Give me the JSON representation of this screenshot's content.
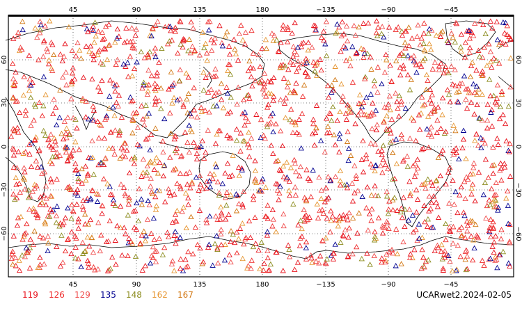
{
  "map": {
    "projection": "cylindrical-equidistant",
    "central_longitude": 180,
    "longitude_ticks_top": [
      "45",
      "90",
      "135",
      "180",
      "−135",
      "−90",
      "−45"
    ],
    "longitude_ticks_bottom": [
      "45",
      "90",
      "135",
      "180",
      "−135",
      "−90",
      "−45"
    ],
    "latitude_ticks_left": [
      "60",
      "30",
      "0",
      "−30",
      "−60"
    ],
    "latitude_ticks_right": [
      "60",
      "30",
      "0",
      "−30",
      "−60"
    ],
    "gridlines": "dotted",
    "coastline_color": "#000000",
    "marker_shape": "triangle-outline"
  },
  "legend": [
    {
      "label": "119",
      "color": "#e8141e"
    },
    {
      "label": "126",
      "color": "#ee2a2a"
    },
    {
      "label": "129",
      "color": "#f05050"
    },
    {
      "label": "135",
      "color": "#000090"
    },
    {
      "label": "148",
      "color": "#8c8c1e"
    },
    {
      "label": "162",
      "color": "#e69632"
    },
    {
      "label": "167",
      "color": "#d27814"
    }
  ],
  "dataset_label": "UCARwet2.2024-02-05"
}
